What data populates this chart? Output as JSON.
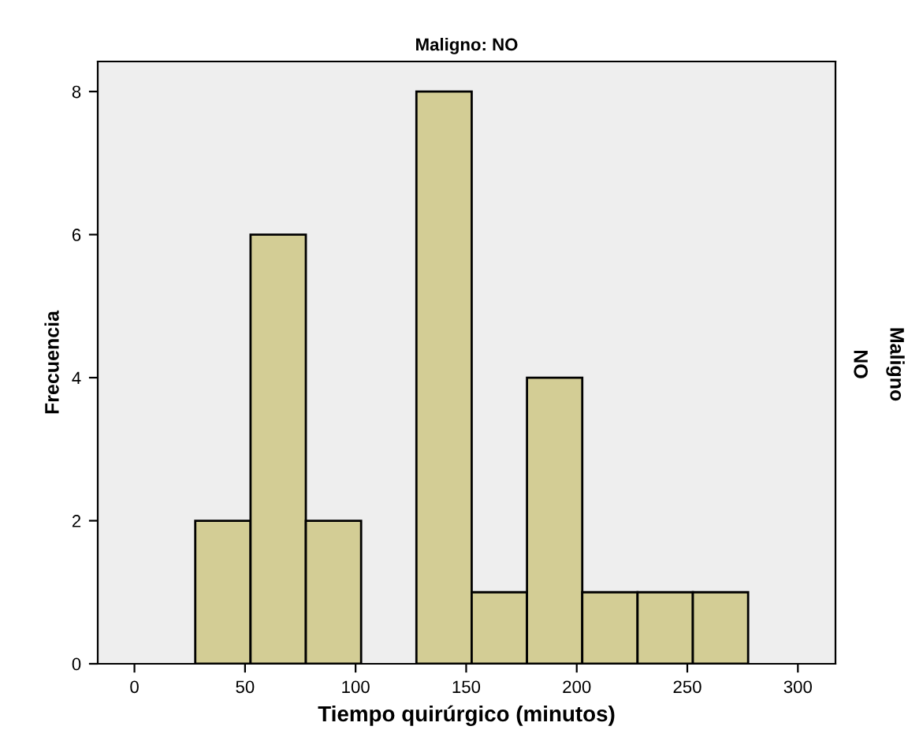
{
  "chart_data": {
    "type": "histogram",
    "title": "Maligno: NO",
    "xlabel": "Tiempo quirúrgico (minutos)",
    "ylabel": "Frecuencia",
    "annotations": [
      "NO",
      "Maligno"
    ],
    "bins": [
      27.5,
      52.5,
      77.5,
      102.5,
      127.5,
      152.5,
      177.5,
      202.5,
      227.5,
      252.5,
      277.5
    ],
    "values": [
      2,
      6,
      2,
      0,
      8,
      1,
      4,
      1,
      1,
      1
    ],
    "color": "#d3cd95",
    "xlim": [
      -16.6,
      317
    ],
    "xticks": [
      0,
      50,
      100,
      150,
      200,
      250,
      300
    ],
    "ylim": [
      0,
      8.42
    ],
    "yticks": [
      0,
      2,
      4,
      6,
      8
    ],
    "grid": false
  }
}
